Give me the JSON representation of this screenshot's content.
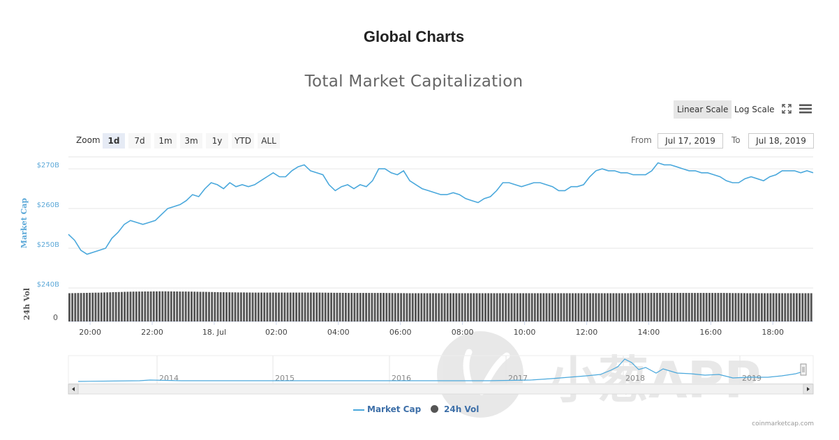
{
  "header": {
    "title": "Global Charts",
    "chart_title": "Total Market Capitalization"
  },
  "scale": {
    "linear_label": "Linear Scale",
    "log_label": "Log Scale",
    "active": "linear"
  },
  "toolbar": {
    "fullscreen_icon": "fullscreen-icon",
    "menu_icon": "hamburger-menu-icon"
  },
  "zoom": {
    "label": "Zoom",
    "buttons": [
      "1d",
      "7d",
      "1m",
      "3m",
      "1y",
      "YTD",
      "ALL"
    ],
    "active": "1d"
  },
  "range": {
    "from_label": "From",
    "from_value": "Jul 17, 2019",
    "to_label": "To",
    "to_value": "Jul 18, 2019"
  },
  "legend": {
    "market_cap": "Market Cap",
    "volume": "24h Vol"
  },
  "credits": "coinmarketcap.com",
  "colors": {
    "line": "#4aa8dc",
    "bars": "#555555",
    "axis_label": "#5ba8d8"
  },
  "chart_data": {
    "type": "line",
    "title": "Total Market Capitalization",
    "ylabel": "Market Cap",
    "ylabel2": "24h Vol",
    "y_ticks": [
      "$240B",
      "$250B",
      "$260B",
      "$270B"
    ],
    "y_tick_values": [
      240,
      250,
      260,
      270
    ],
    "y2_tick": "0",
    "ylim": [
      240,
      273
    ],
    "y_unit": "billion USD",
    "x_ticks": [
      "20:00",
      "22:00",
      "18. Jul",
      "02:00",
      "04:00",
      "06:00",
      "08:00",
      "10:00",
      "12:00",
      "14:00",
      "16:00",
      "18:00"
    ],
    "x_tick_hours": [
      20,
      22,
      24,
      26,
      28,
      30,
      32,
      34,
      36,
      38,
      40,
      42
    ],
    "xlim_hours": [
      19.3,
      43.3
    ],
    "series": [
      {
        "name": "Market Cap",
        "x_hours": [
          19.3,
          19.5,
          19.7,
          19.9,
          20.1,
          20.3,
          20.5,
          20.7,
          20.9,
          21.1,
          21.3,
          21.5,
          21.7,
          21.9,
          22.1,
          22.3,
          22.5,
          22.7,
          22.9,
          23.1,
          23.3,
          23.5,
          23.7,
          23.9,
          24.1,
          24.3,
          24.5,
          24.7,
          24.9,
          25.1,
          25.3,
          25.5,
          25.7,
          25.9,
          26.1,
          26.3,
          26.5,
          26.7,
          26.9,
          27.1,
          27.3,
          27.5,
          27.7,
          27.9,
          28.1,
          28.3,
          28.5,
          28.7,
          28.9,
          29.1,
          29.3,
          29.5,
          29.7,
          29.9,
          30.1,
          30.3,
          30.5,
          30.7,
          30.9,
          31.1,
          31.3,
          31.5,
          31.7,
          31.9,
          32.1,
          32.3,
          32.5,
          32.7,
          32.9,
          33.1,
          33.3,
          33.5,
          33.7,
          33.9,
          34.1,
          34.3,
          34.5,
          34.7,
          34.9,
          35.1,
          35.3,
          35.5,
          35.7,
          35.9,
          36.1,
          36.3,
          36.5,
          36.7,
          36.9,
          37.1,
          37.3,
          37.5,
          37.7,
          37.9,
          38.1,
          38.3,
          38.5,
          38.7,
          38.9,
          39.1,
          39.3,
          39.5,
          39.7,
          39.9,
          40.1,
          40.3,
          40.5,
          40.7,
          40.9,
          41.1,
          41.3,
          41.5,
          41.7,
          41.9,
          42.1,
          42.3,
          42.5,
          42.7,
          42.9,
          43.1,
          43.3
        ],
        "values": [
          253.5,
          252.0,
          249.5,
          248.5,
          249.0,
          249.5,
          250.0,
          252.5,
          254.0,
          256.0,
          257.0,
          256.5,
          256.0,
          256.5,
          257.0,
          258.5,
          260.0,
          260.5,
          261.0,
          262.0,
          263.5,
          263.0,
          265.0,
          266.5,
          266.0,
          265.0,
          266.5,
          265.5,
          266.0,
          265.5,
          266.0,
          267.0,
          268.0,
          269.0,
          268.0,
          268.0,
          269.5,
          270.5,
          271.0,
          269.5,
          269.0,
          268.5,
          266.0,
          264.5,
          265.5,
          266.0,
          265.0,
          266.0,
          265.5,
          267.0,
          270.0,
          270.0,
          269.0,
          268.5,
          269.5,
          267.0,
          266.0,
          265.0,
          264.5,
          264.0,
          263.5,
          263.5,
          264.0,
          263.5,
          262.5,
          262.0,
          261.5,
          262.5,
          263.0,
          264.5,
          266.5,
          266.5,
          266.0,
          265.5,
          266.0,
          266.5,
          266.5,
          266.0,
          265.5,
          264.5,
          264.5,
          265.5,
          265.5,
          266.0,
          268.0,
          269.5,
          270.0,
          269.5,
          269.5,
          269.0,
          269.0,
          268.5,
          268.5,
          268.5,
          269.5,
          271.5,
          271.0,
          271.0,
          270.5,
          270.0,
          269.5,
          269.5,
          269.0,
          269.0,
          268.5,
          268.0,
          267.0,
          266.5,
          266.5,
          267.5,
          268.0,
          267.5,
          267.0,
          268.0,
          268.5,
          269.5,
          269.5,
          269.5,
          269.0,
          269.5,
          269.0
        ]
      },
      {
        "name": "24h Vol",
        "trend": "roughly constant",
        "relative_heights": [
          0.9,
          0.92,
          0.95,
          0.96,
          0.95,
          0.93,
          0.92,
          0.92,
          0.92,
          0.91,
          0.91,
          0.9,
          0.9,
          0.9,
          0.9,
          0.9,
          0.9,
          0.9,
          0.9,
          0.91,
          0.91,
          0.91,
          0.9,
          0.9,
          0.9
        ]
      }
    ],
    "navigator": {
      "x_ticks": [
        "2014",
        "2015",
        "2016",
        "2017",
        "2018",
        "2019"
      ]
    }
  }
}
